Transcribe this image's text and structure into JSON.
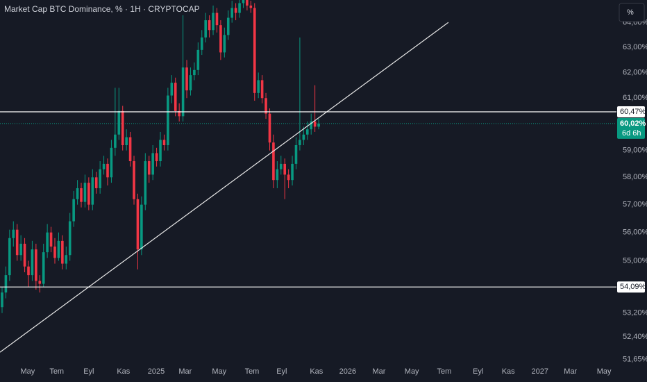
{
  "chart_data": {
    "type": "candlestick",
    "title": "Market Cap BTC Dominance, % · 1H · CRYPTOCAP",
    "scale_button": "%",
    "log_scale": true,
    "up_color": "#089981",
    "down_color": "#f23645",
    "open": [
      53.4,
      53.9,
      54.5,
      55.8,
      56.1,
      55.2,
      55.6,
      54.8,
      54.5,
      55.4,
      54.3,
      54.2,
      55.3,
      56.0,
      55.5,
      55.1,
      55.7,
      54.9,
      55.2,
      56.4,
      57.2,
      57.6,
      57.1,
      57.8,
      57.0,
      58.0,
      57.6,
      58.3,
      58.5,
      58.0,
      59.1,
      59.6,
      60.5,
      59.2,
      59.5,
      58.6,
      57.2,
      55.4,
      57.0,
      58.6,
      58.1,
      58.9,
      58.6,
      59.4,
      59.2,
      61.1,
      61.6,
      60.5,
      60.3,
      62.2,
      61.3,
      61.9,
      62.1,
      62.9,
      63.4,
      64.1,
      63.7,
      64.4,
      63.9,
      62.8,
      63.5,
      64.2,
      64.6,
      64.4,
      64.8,
      65.0,
      64.7,
      64.6,
      61.2,
      61.7,
      61.0,
      60.4,
      59.3,
      57.9,
      58.3,
      58.5,
      58.1,
      57.9,
      58.5,
      59.2,
      59.4,
      59.6,
      59.8,
      60.1,
      59.9
    ],
    "high": [
      54.1,
      54.8,
      56.1,
      56.4,
      56.3,
      55.9,
      55.8,
      55.0,
      55.7,
      55.6,
      54.5,
      55.6,
      56.3,
      56.2,
      55.8,
      56.0,
      55.9,
      55.5,
      56.7,
      57.5,
      57.9,
      57.8,
      58.1,
      58.0,
      58.3,
      58.2,
      58.6,
      58.8,
      58.7,
      59.4,
      61.4,
      61.4,
      60.7,
      59.8,
      59.7,
      58.8,
      57.4,
      57.3,
      58.9,
      58.8,
      59.2,
      59.1,
      59.7,
      59.6,
      61.4,
      61.9,
      61.8,
      60.8,
      64.3,
      62.5,
      62.2,
      62.4,
      63.2,
      63.7,
      64.4,
      64.3,
      64.7,
      64.6,
      64.1,
      63.8,
      64.5,
      64.9,
      64.8,
      65.1,
      65.3,
      65.2,
      64.9,
      64.8,
      62.0,
      61.9,
      61.2,
      60.6,
      59.6,
      58.6,
      58.8,
      58.7,
      58.3,
      58.8,
      59.5,
      63.4,
      59.9,
      60.1,
      60.4,
      61.5,
      60.2
    ],
    "low": [
      53.2,
      53.7,
      54.3,
      55.5,
      55.0,
      55.0,
      54.6,
      54.1,
      54.3,
      54.0,
      53.9,
      54.1,
      55.1,
      55.3,
      54.9,
      55.0,
      54.7,
      54.7,
      55.0,
      56.2,
      57.0,
      56.9,
      56.9,
      56.8,
      56.8,
      57.4,
      57.4,
      58.1,
      57.7,
      57.8,
      58.8,
      59.4,
      59.0,
      59.0,
      58.4,
      57.0,
      54.7,
      55.2,
      56.8,
      57.8,
      57.9,
      58.4,
      58.4,
      59.0,
      59.0,
      60.8,
      60.3,
      60.1,
      60.1,
      61.0,
      61.1,
      61.7,
      61.9,
      62.7,
      63.2,
      63.4,
      63.5,
      63.6,
      62.5,
      62.6,
      63.3,
      64.0,
      64.1,
      64.2,
      64.6,
      64.5,
      64.4,
      60.9,
      61.0,
      60.8,
      60.2,
      59.0,
      57.6,
      57.6,
      58.1,
      57.2,
      57.6,
      57.7,
      58.3,
      59.0,
      59.2,
      59.4,
      59.6,
      59.7,
      59.8
    ],
    "close": [
      53.9,
      54.5,
      55.8,
      56.1,
      55.2,
      55.6,
      54.8,
      54.5,
      55.4,
      54.3,
      54.2,
      55.3,
      56.0,
      55.5,
      55.1,
      55.7,
      54.9,
      55.2,
      56.4,
      57.2,
      57.6,
      57.1,
      57.8,
      57.0,
      58.0,
      57.6,
      58.3,
      58.5,
      58.0,
      59.1,
      59.6,
      60.5,
      59.2,
      59.5,
      58.6,
      57.2,
      55.4,
      57.0,
      58.6,
      58.1,
      58.9,
      58.6,
      59.4,
      59.2,
      61.1,
      61.6,
      60.5,
      60.3,
      62.2,
      61.3,
      61.9,
      62.1,
      62.9,
      63.4,
      64.1,
      63.7,
      64.4,
      63.9,
      62.8,
      63.5,
      64.2,
      64.6,
      64.4,
      64.8,
      65.0,
      64.7,
      64.6,
      61.2,
      61.7,
      61.0,
      60.4,
      59.3,
      57.9,
      58.3,
      58.5,
      58.1,
      57.9,
      58.5,
      59.2,
      59.4,
      59.6,
      59.8,
      60.1,
      59.9,
      60.02
    ],
    "xlim": [
      -0.55,
      163
    ],
    "xticks": [
      {
        "value": 6.8,
        "label": "May"
      },
      {
        "value": 14.5,
        "label": "Tem"
      },
      {
        "value": 23,
        "label": "Eyl"
      },
      {
        "value": 32.2,
        "label": "Kas"
      },
      {
        "value": 40.9,
        "label": "2025"
      },
      {
        "value": 48.6,
        "label": "Mar"
      },
      {
        "value": 57.6,
        "label": "May"
      },
      {
        "value": 66.3,
        "label": "Tem"
      },
      {
        "value": 74.2,
        "label": "Eyl"
      },
      {
        "value": 83.4,
        "label": "Kas"
      },
      {
        "value": 91.7,
        "label": "2026"
      },
      {
        "value": 100,
        "label": "Mar"
      },
      {
        "value": 108.7,
        "label": "May"
      },
      {
        "value": 117.3,
        "label": "Tem"
      },
      {
        "value": 126.3,
        "label": "Eyl"
      },
      {
        "value": 134.3,
        "label": "Kas"
      },
      {
        "value": 142.7,
        "label": "2027"
      },
      {
        "value": 150.8,
        "label": "Mar"
      },
      {
        "value": 159.7,
        "label": "May"
      }
    ],
    "ylim": [
      51.55,
      64.93
    ],
    "yticks": [
      {
        "value": 64,
        "label": "64,00%"
      },
      {
        "value": 63,
        "label": "63,00%"
      },
      {
        "value": 62,
        "label": "62,00%"
      },
      {
        "value": 61,
        "label": "61,00%"
      },
      {
        "value": 59,
        "label": "59,00%"
      },
      {
        "value": 58,
        "label": "58,00%"
      },
      {
        "value": 57,
        "label": "57,00%"
      },
      {
        "value": 56,
        "label": "56,00%"
      },
      {
        "value": 55,
        "label": "55,00%"
      },
      {
        "value": 53.2,
        "label": "53,20%"
      },
      {
        "value": 52.4,
        "label": "52,40%"
      },
      {
        "value": 51.65,
        "label": "51,65%"
      }
    ],
    "price_lines": [
      {
        "value": 60.47,
        "label": "60,47%"
      },
      {
        "value": 54.09,
        "label": "54,09%"
      }
    ],
    "last_price": {
      "value": 60.02,
      "label": "60,02%",
      "countdown": "6d 6h"
    },
    "trendline": {
      "x": [
        -0.55,
        118.4
      ],
      "y": [
        51.89,
        64.01
      ]
    }
  }
}
